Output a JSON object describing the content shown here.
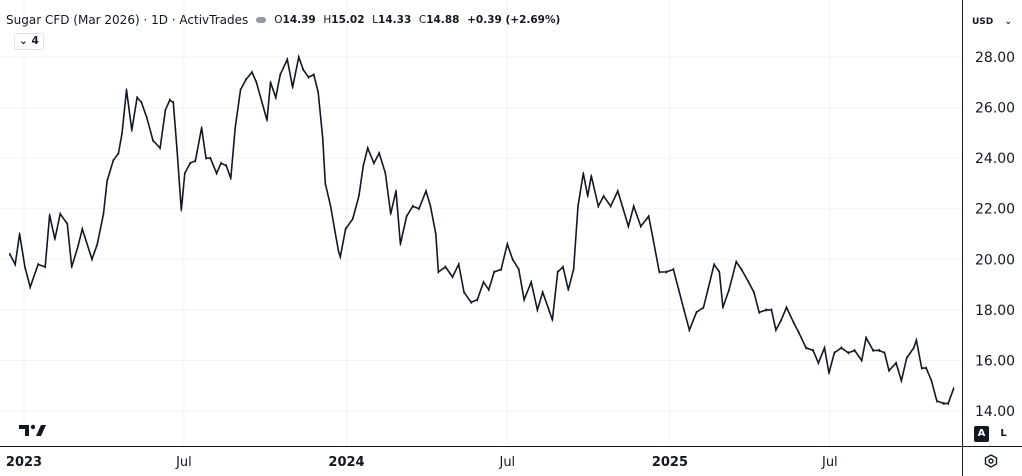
{
  "legend": {
    "title": "Sugar CFD (Mar 2026) · 1D · ActivTrades",
    "open_label": "O",
    "open": "14.39",
    "high_label": "H",
    "high": "15.02",
    "low_label": "L",
    "low": "14.33",
    "close_label": "C",
    "close": "14.88",
    "change": "+0.39 (+2.69%)",
    "collapse_count": "4"
  },
  "price_axis": {
    "currency": "USD",
    "auto_button": "A",
    "log_button": "L"
  },
  "colors": {
    "series": "#131722",
    "grid": "#f0f3fa",
    "axis_line": "#131722"
  },
  "icons": {
    "collapse": "chevron-down-icon",
    "currency_dropdown": "chevron-down-icon",
    "settings": "eye-settings-icon",
    "logo": "tradingview-logo"
  },
  "chart_data": {
    "type": "line",
    "title": "Sugar CFD (Mar 2026) · 1D · ActivTrades",
    "xlabel": "",
    "ylabel": "",
    "ylim": [
      13.1,
      29.1
    ],
    "y_ticks": [
      "14.00",
      "16.00",
      "18.00",
      "20.00",
      "22.00",
      "24.00",
      "26.00",
      "28.00"
    ],
    "x_ticks": [
      {
        "date": "2023-01-01",
        "label": "2023",
        "bold": true
      },
      {
        "date": "2023-07-01",
        "label": "Jul",
        "bold": false
      },
      {
        "date": "2024-01-01",
        "label": "2024",
        "bold": true
      },
      {
        "date": "2024-07-01",
        "label": "Jul",
        "bold": false
      },
      {
        "date": "2025-01-01",
        "label": "2025",
        "bold": true
      },
      {
        "date": "2025-07-01",
        "label": "Jul",
        "bold": false
      }
    ],
    "grid": true,
    "series": [
      {
        "values": [
          [
            "2022-12-16",
            20.2
          ],
          [
            "2022-12-22",
            19.8
          ],
          [
            "2022-12-27",
            21.0
          ],
          [
            "2023-01-02",
            19.7
          ],
          [
            "2023-01-08",
            18.9
          ],
          [
            "2023-01-17",
            19.8
          ],
          [
            "2023-01-25",
            19.7
          ],
          [
            "2023-01-30",
            21.75
          ],
          [
            "2023-02-05",
            20.8
          ],
          [
            "2023-02-11",
            21.8
          ],
          [
            "2023-02-19",
            21.4
          ],
          [
            "2023-02-24",
            19.7
          ],
          [
            "2023-03-03",
            20.5
          ],
          [
            "2023-03-08",
            21.2
          ],
          [
            "2023-03-19",
            20.0
          ],
          [
            "2023-03-25",
            20.6
          ],
          [
            "2023-04-01",
            21.8
          ],
          [
            "2023-04-05",
            23.1
          ],
          [
            "2023-04-12",
            23.9
          ],
          [
            "2023-04-18",
            24.2
          ],
          [
            "2023-04-22",
            25.0
          ],
          [
            "2023-04-27",
            26.7
          ],
          [
            "2023-05-03",
            25.1
          ],
          [
            "2023-05-09",
            26.4
          ],
          [
            "2023-05-14",
            26.2
          ],
          [
            "2023-05-20",
            25.6
          ],
          [
            "2023-05-27",
            24.7
          ],
          [
            "2023-06-04",
            24.4
          ],
          [
            "2023-06-10",
            25.9
          ],
          [
            "2023-06-15",
            26.3
          ],
          [
            "2023-06-19",
            26.2
          ],
          [
            "2023-06-23",
            24.4
          ],
          [
            "2023-06-28",
            21.95
          ],
          [
            "2023-07-02",
            23.4
          ],
          [
            "2023-07-08",
            23.8
          ],
          [
            "2023-07-14",
            23.9
          ],
          [
            "2023-07-21",
            25.2
          ],
          [
            "2023-07-26",
            24.0
          ],
          [
            "2023-07-31",
            24.0
          ],
          [
            "2023-08-07",
            23.4
          ],
          [
            "2023-08-12",
            23.8
          ],
          [
            "2023-08-18",
            23.7
          ],
          [
            "2023-08-23",
            23.2
          ],
          [
            "2023-08-28",
            25.2
          ],
          [
            "2023-09-03",
            26.7
          ],
          [
            "2023-09-09",
            27.1
          ],
          [
            "2023-09-16",
            27.4
          ],
          [
            "2023-09-21",
            27.0
          ],
          [
            "2023-10-03",
            25.5
          ],
          [
            "2023-10-07",
            27.0
          ],
          [
            "2023-10-13",
            26.4
          ],
          [
            "2023-10-18",
            27.3
          ],
          [
            "2023-10-26",
            27.9
          ],
          [
            "2023-11-01",
            26.8
          ],
          [
            "2023-11-08",
            28.0
          ],
          [
            "2023-11-13",
            27.5
          ],
          [
            "2023-11-19",
            27.2
          ],
          [
            "2023-11-25",
            27.3
          ],
          [
            "2023-11-30",
            26.6
          ],
          [
            "2023-12-05",
            24.8
          ],
          [
            "2023-12-08",
            23.0
          ],
          [
            "2023-12-14",
            22.1
          ],
          [
            "2023-12-20",
            20.9
          ],
          [
            "2023-12-23",
            20.3
          ],
          [
            "2023-12-25",
            20.1
          ],
          [
            "2023-12-31",
            21.2
          ],
          [
            "2024-01-08",
            21.6
          ],
          [
            "2024-01-15",
            22.5
          ],
          [
            "2024-01-20",
            23.7
          ],
          [
            "2024-01-25",
            24.4
          ],
          [
            "2024-02-01",
            23.8
          ],
          [
            "2024-02-07",
            24.2
          ],
          [
            "2024-02-14",
            23.4
          ],
          [
            "2024-02-20",
            21.8
          ],
          [
            "2024-02-26",
            22.7
          ],
          [
            "2024-03-02",
            20.6
          ],
          [
            "2024-03-09",
            21.7
          ],
          [
            "2024-03-16",
            22.1
          ],
          [
            "2024-03-23",
            22.0
          ],
          [
            "2024-03-31",
            22.7
          ],
          [
            "2024-04-05",
            22.1
          ],
          [
            "2024-04-11",
            21.0
          ],
          [
            "2024-04-14",
            19.5
          ],
          [
            "2024-04-22",
            19.7
          ],
          [
            "2024-04-30",
            19.3
          ],
          [
            "2024-05-07",
            19.8
          ],
          [
            "2024-05-13",
            18.7
          ],
          [
            "2024-05-21",
            18.3
          ],
          [
            "2024-05-28",
            18.4
          ],
          [
            "2024-06-04",
            19.1
          ],
          [
            "2024-06-10",
            18.8
          ],
          [
            "2024-06-16",
            19.5
          ],
          [
            "2024-06-24",
            19.6
          ],
          [
            "2024-07-01",
            20.6
          ],
          [
            "2024-07-07",
            20.0
          ],
          [
            "2024-07-14",
            19.6
          ],
          [
            "2024-07-20",
            18.4
          ],
          [
            "2024-07-28",
            19.1
          ],
          [
            "2024-08-04",
            18.0
          ],
          [
            "2024-08-10",
            18.7
          ],
          [
            "2024-08-17",
            18.0
          ],
          [
            "2024-08-21",
            17.6
          ],
          [
            "2024-08-27",
            19.5
          ],
          [
            "2024-09-02",
            19.7
          ],
          [
            "2024-09-08",
            18.8
          ],
          [
            "2024-09-14",
            19.6
          ],
          [
            "2024-09-19",
            22.1
          ],
          [
            "2024-09-25",
            23.4
          ],
          [
            "2024-09-30",
            22.5
          ],
          [
            "2024-10-04",
            23.3
          ],
          [
            "2024-10-12",
            22.1
          ],
          [
            "2024-10-18",
            22.5
          ],
          [
            "2024-10-26",
            22.1
          ],
          [
            "2024-11-03",
            22.7
          ],
          [
            "2024-11-09",
            22.0
          ],
          [
            "2024-11-15",
            21.3
          ],
          [
            "2024-11-21",
            22.1
          ],
          [
            "2024-11-29",
            21.3
          ],
          [
            "2024-12-08",
            21.7
          ],
          [
            "2024-12-13",
            20.8
          ],
          [
            "2024-12-20",
            19.5
          ],
          [
            "2024-12-28",
            19.5
          ],
          [
            "2025-01-05",
            19.6
          ],
          [
            "2025-01-11",
            18.8
          ],
          [
            "2025-01-17",
            18.0
          ],
          [
            "2025-01-23",
            17.2
          ],
          [
            "2025-01-31",
            17.9
          ],
          [
            "2025-02-08",
            18.1
          ],
          [
            "2025-02-13",
            18.8
          ],
          [
            "2025-02-20",
            19.8
          ],
          [
            "2025-02-26",
            19.5
          ],
          [
            "2025-03-02",
            18.1
          ],
          [
            "2025-03-09",
            18.8
          ],
          [
            "2025-03-17",
            19.9
          ],
          [
            "2025-03-23",
            19.6
          ],
          [
            "2025-03-31",
            19.1
          ],
          [
            "2025-04-06",
            18.7
          ],
          [
            "2025-04-12",
            17.9
          ],
          [
            "2025-04-20",
            18.0
          ],
          [
            "2025-04-26",
            18.0
          ],
          [
            "2025-05-01",
            17.2
          ],
          [
            "2025-05-07",
            17.6
          ],
          [
            "2025-05-13",
            18.1
          ],
          [
            "2025-05-21",
            17.5
          ],
          [
            "2025-05-27",
            17.1
          ],
          [
            "2025-06-04",
            16.5
          ],
          [
            "2025-06-12",
            16.4
          ],
          [
            "2025-06-18",
            15.9
          ],
          [
            "2025-06-25",
            16.5
          ],
          [
            "2025-06-30",
            15.5
          ],
          [
            "2025-07-06",
            16.3
          ],
          [
            "2025-07-14",
            16.5
          ],
          [
            "2025-07-22",
            16.3
          ],
          [
            "2025-07-29",
            16.4
          ],
          [
            "2025-08-06",
            16.0
          ],
          [
            "2025-08-11",
            16.9
          ],
          [
            "2025-08-19",
            16.4
          ],
          [
            "2025-08-26",
            16.4
          ],
          [
            "2025-09-01",
            16.3
          ],
          [
            "2025-09-06",
            15.6
          ],
          [
            "2025-09-14",
            15.9
          ],
          [
            "2025-09-20",
            15.2
          ],
          [
            "2025-09-26",
            16.1
          ],
          [
            "2025-10-04",
            16.5
          ],
          [
            "2025-10-07",
            16.8
          ],
          [
            "2025-10-13",
            15.7
          ],
          [
            "2025-10-18",
            15.7
          ],
          [
            "2025-10-24",
            15.2
          ],
          [
            "2025-10-30",
            14.4
          ],
          [
            "2025-11-07",
            14.3
          ],
          [
            "2025-11-12",
            14.3
          ],
          [
            "2025-11-18",
            14.88
          ]
        ]
      }
    ]
  }
}
